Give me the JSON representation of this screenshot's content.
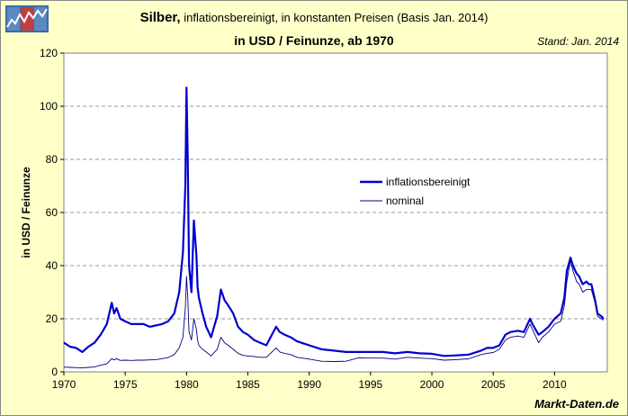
{
  "title": {
    "main": "Silber,",
    "subtitle": " inflationsbereinigt, in konstanten Preisen (Basis Jan. 2014)",
    "line2": "in USD / Feinunze, ab 1970"
  },
  "stand": "Stand: Jan. 2014",
  "source": "Markt-Daten.de",
  "colors": {
    "background": "#ffffc8",
    "real": "#0000d0",
    "nominal": "#000080",
    "grid": "#9a9a9a",
    "logo": "#3a6aa8"
  },
  "chart_data": {
    "type": "line",
    "title": "Silber, inflationsbereinigt, in konstanten Preisen (Basis Jan. 2014)",
    "xlabel": "",
    "ylabel": "in USD / Feinunze",
    "xlim": [
      1970,
      2014.3
    ],
    "ylim": [
      0,
      120
    ],
    "xticks": [
      1970,
      1975,
      1980,
      1985,
      1990,
      1995,
      2000,
      2005,
      2010
    ],
    "yticks": [
      0,
      20,
      40,
      60,
      80,
      100,
      120
    ],
    "grid": "horizontal dashed",
    "legend_position": "center-right",
    "series": [
      {
        "name": "inflationsbereinigt",
        "x": [
          1970.0,
          1970.5,
          1971.0,
          1971.5,
          1972.0,
          1972.5,
          1973.0,
          1973.5,
          1973.9,
          1974.1,
          1974.3,
          1974.6,
          1975.0,
          1975.5,
          1976.0,
          1976.5,
          1977.0,
          1977.5,
          1978.0,
          1978.5,
          1979.0,
          1979.4,
          1979.7,
          1979.9,
          1980.0,
          1980.1,
          1980.2,
          1980.4,
          1980.6,
          1980.8,
          1980.9,
          1981.0,
          1981.3,
          1981.6,
          1982.0,
          1982.5,
          1982.8,
          1983.1,
          1983.4,
          1983.8,
          1984.2,
          1984.6,
          1985.0,
          1985.5,
          1986.0,
          1986.5,
          1987.3,
          1987.6,
          1988.0,
          1988.5,
          1989.0,
          1990.0,
          1991.0,
          1992.0,
          1993.0,
          1994.0,
          1995.0,
          1996.0,
          1997.0,
          1998.0,
          1999.0,
          2000.0,
          2001.0,
          2002.0,
          2003.0,
          2004.0,
          2004.5,
          2005.0,
          2005.5,
          2006.0,
          2006.4,
          2007.0,
          2007.5,
          2008.0,
          2008.2,
          2008.7,
          2009.0,
          2009.5,
          2010.0,
          2010.5,
          2010.8,
          2011.0,
          2011.3,
          2011.5,
          2011.8,
          2012.0,
          2012.3,
          2012.6,
          2012.8,
          2013.0,
          2013.3,
          2013.5,
          2013.8,
          2014.0
        ],
        "values": [
          11,
          9.5,
          9,
          7.5,
          9.5,
          11,
          14,
          18,
          26,
          22,
          24,
          20,
          19,
          18,
          18,
          18,
          17,
          17.5,
          18,
          19,
          22,
          30,
          45,
          70,
          107,
          80,
          40,
          30,
          57,
          44,
          32,
          28,
          22,
          17,
          13,
          21,
          31,
          27,
          25,
          22,
          17,
          15,
          14,
          12,
          11,
          10,
          17,
          15,
          14,
          13,
          11.5,
          10,
          8.5,
          8,
          7.5,
          7.5,
          7.5,
          7.5,
          7,
          7.5,
          7,
          6.8,
          6,
          6.2,
          6.5,
          8,
          9,
          9,
          10,
          14,
          15,
          15.5,
          15,
          20,
          18,
          14,
          15,
          17,
          20,
          22,
          28,
          38,
          43,
          40,
          37,
          36,
          33,
          34,
          33,
          33,
          27,
          22,
          21,
          20
        ]
      },
      {
        "name": "nominal",
        "x": [
          1970.0,
          1970.5,
          1971.0,
          1971.5,
          1972.0,
          1972.5,
          1973.0,
          1973.5,
          1973.9,
          1974.1,
          1974.3,
          1974.6,
          1975.0,
          1975.5,
          1976.0,
          1976.5,
          1977.0,
          1977.5,
          1978.0,
          1978.5,
          1979.0,
          1979.4,
          1979.7,
          1979.9,
          1980.0,
          1980.1,
          1980.2,
          1980.4,
          1980.6,
          1980.8,
          1980.9,
          1981.0,
          1981.3,
          1981.6,
          1982.0,
          1982.5,
          1982.8,
          1983.1,
          1983.4,
          1983.8,
          1984.2,
          1984.6,
          1985.0,
          1985.5,
          1986.0,
          1986.5,
          1987.3,
          1987.6,
          1988.0,
          1988.5,
          1989.0,
          1990.0,
          1991.0,
          1992.0,
          1993.0,
          1994.0,
          1995.0,
          1996.0,
          1997.0,
          1998.0,
          1999.0,
          2000.0,
          2001.0,
          2002.0,
          2003.0,
          2004.0,
          2004.5,
          2005.0,
          2005.5,
          2006.0,
          2006.4,
          2007.0,
          2007.5,
          2008.0,
          2008.2,
          2008.7,
          2009.0,
          2009.5,
          2010.0,
          2010.5,
          2010.8,
          2011.0,
          2011.3,
          2011.5,
          2011.8,
          2012.0,
          2012.3,
          2012.6,
          2012.8,
          2013.0,
          2013.3,
          2013.5,
          2013.8,
          2014.0
        ],
        "values": [
          1.8,
          1.7,
          1.6,
          1.5,
          1.7,
          1.9,
          2.5,
          3.0,
          5.0,
          4.5,
          5.0,
          4.3,
          4.4,
          4.3,
          4.4,
          4.4,
          4.5,
          4.6,
          5.0,
          5.4,
          6.5,
          9.0,
          13,
          24,
          36,
          28,
          15,
          12,
          20,
          16,
          12,
          10,
          8.5,
          7.5,
          6.0,
          8.5,
          13,
          11,
          10,
          8.5,
          7.0,
          6.2,
          6.0,
          5.8,
          5.5,
          5.5,
          9.0,
          7.5,
          7.0,
          6.5,
          5.5,
          4.8,
          4.0,
          3.9,
          4.0,
          5.3,
          5.2,
          5.2,
          4.8,
          5.5,
          5.2,
          5.0,
          4.4,
          4.6,
          4.9,
          6.5,
          7.0,
          7.3,
          8.5,
          12,
          13,
          13.5,
          13,
          18,
          16,
          11,
          13,
          15,
          18,
          19,
          25,
          34,
          42,
          38,
          34,
          33,
          30,
          31,
          31,
          31,
          26,
          21,
          20,
          19.5
        ]
      }
    ]
  }
}
